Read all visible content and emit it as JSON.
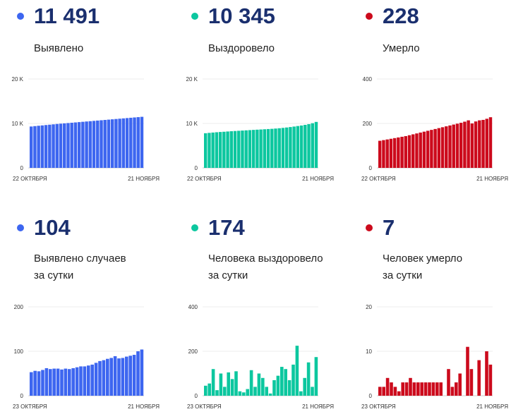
{
  "colors": {
    "blue": "#3D66F0",
    "teal": "#0CC79F",
    "red": "#CC0A1C",
    "number": "#1a2f6e"
  },
  "panels": [
    {
      "number": "11 491",
      "label": [
        "Выявлено"
      ],
      "color": "blue"
    },
    {
      "number": "10 345",
      "label": [
        "Выздоровело"
      ],
      "color": "teal"
    },
    {
      "number": "228",
      "label": [
        "Умерло"
      ],
      "color": "red"
    },
    {
      "number": "104",
      "label": [
        "Выявлено случаев",
        "за сутки"
      ],
      "color": "blue"
    },
    {
      "number": "174",
      "label": [
        "Человека выздоровело",
        "за сутки"
      ],
      "color": "teal"
    },
    {
      "number": "7",
      "label": [
        "Человек умерло",
        "за сутки"
      ],
      "color": "red"
    }
  ],
  "chart_data": [
    {
      "type": "bar",
      "ylim": [
        0,
        20000
      ],
      "yticks": [
        0,
        10000,
        20000
      ],
      "ytick_labels": [
        "0",
        "10 K",
        "20 K"
      ],
      "x_start_label": "22 ОКТЯБРЯ",
      "x_end_label": "21 НОЯБРЯ",
      "series": [
        {
          "color": "blue",
          "values": [
            9310,
            9400,
            9480,
            9560,
            9640,
            9720,
            9800,
            9880,
            9950,
            10020,
            10090,
            10160,
            10230,
            10300,
            10370,
            10440,
            10510,
            10580,
            10650,
            10720,
            10790,
            10860,
            10930,
            11000,
            11070,
            11140,
            11210,
            11280,
            11350,
            11420,
            11491
          ]
        }
      ]
    },
    {
      "type": "bar",
      "ylim": [
        0,
        20000
      ],
      "yticks": [
        0,
        10000,
        20000
      ],
      "ytick_labels": [
        "0",
        "10 K",
        "20 K"
      ],
      "x_start_label": "22 ОКТЯБРЯ",
      "x_end_label": "21 НОЯБРЯ",
      "series": [
        {
          "color": "teal",
          "values": [
            7800,
            7880,
            7950,
            8020,
            8080,
            8130,
            8190,
            8250,
            8300,
            8350,
            8400,
            8450,
            8500,
            8550,
            8600,
            8640,
            8690,
            8740,
            8790,
            8850,
            8920,
            9000,
            9090,
            9190,
            9300,
            9420,
            9540,
            9680,
            9850,
            10050,
            10345
          ]
        }
      ]
    },
    {
      "type": "bar",
      "ylim": [
        0,
        400
      ],
      "yticks": [
        0,
        200,
        400
      ],
      "ytick_labels": [
        "0",
        "200",
        "400"
      ],
      "x_start_label": "22 ОКТЯБРЯ",
      "x_end_label": "21 НОЯБРЯ",
      "series": [
        {
          "color": "red",
          "values": [
            122,
            125,
            128,
            131,
            134,
            137,
            140,
            143,
            147,
            151,
            155,
            159,
            163,
            167,
            171,
            175,
            179,
            183,
            187,
            191,
            195,
            199,
            203,
            208,
            214,
            200,
            209,
            214,
            216,
            221,
            228
          ]
        }
      ]
    },
    {
      "type": "bar",
      "ylim": [
        0,
        200
      ],
      "yticks": [
        0,
        100,
        200
      ],
      "ytick_labels": [
        "0",
        "100",
        "200"
      ],
      "x_start_label": "23 ОКТЯБРЯ",
      "x_end_label": "21 НОЯБРЯ",
      "series": [
        {
          "color": "blue",
          "values": [
            53,
            56,
            55,
            58,
            62,
            60,
            61,
            61,
            59,
            61,
            60,
            62,
            64,
            66,
            66,
            68,
            70,
            74,
            78,
            80,
            83,
            85,
            89,
            84,
            85,
            88,
            90,
            92,
            100,
            104
          ]
        }
      ]
    },
    {
      "type": "bar",
      "ylim": [
        0,
        400
      ],
      "yticks": [
        0,
        200,
        400
      ],
      "ytick_labels": [
        "0",
        "200",
        "400"
      ],
      "x_start_label": "23 ОКТЯБРЯ",
      "x_end_label": "21 НОЯБРЯ",
      "series": [
        {
          "color": "teal",
          "values": [
            45,
            55,
            120,
            25,
            100,
            40,
            105,
            75,
            110,
            20,
            15,
            30,
            115,
            40,
            100,
            80,
            40,
            10,
            70,
            90,
            130,
            120,
            70,
            140,
            225,
            20,
            80,
            150,
            40,
            174
          ]
        }
      ]
    },
    {
      "type": "bar",
      "ylim": [
        0,
        20
      ],
      "yticks": [
        0,
        10,
        20
      ],
      "ytick_labels": [
        "0",
        "10",
        "20"
      ],
      "x_start_label": "23 ОКТЯБРЯ",
      "x_end_label": "21 НОЯБРЯ",
      "series": [
        {
          "color": "red",
          "values": [
            2,
            2,
            4,
            3,
            2,
            1,
            3,
            3,
            4,
            3,
            3,
            3,
            3,
            3,
            3,
            3,
            3,
            0,
            6,
            2,
            3,
            5,
            0,
            11,
            6,
            0,
            8,
            0,
            10,
            7
          ]
        }
      ]
    }
  ]
}
